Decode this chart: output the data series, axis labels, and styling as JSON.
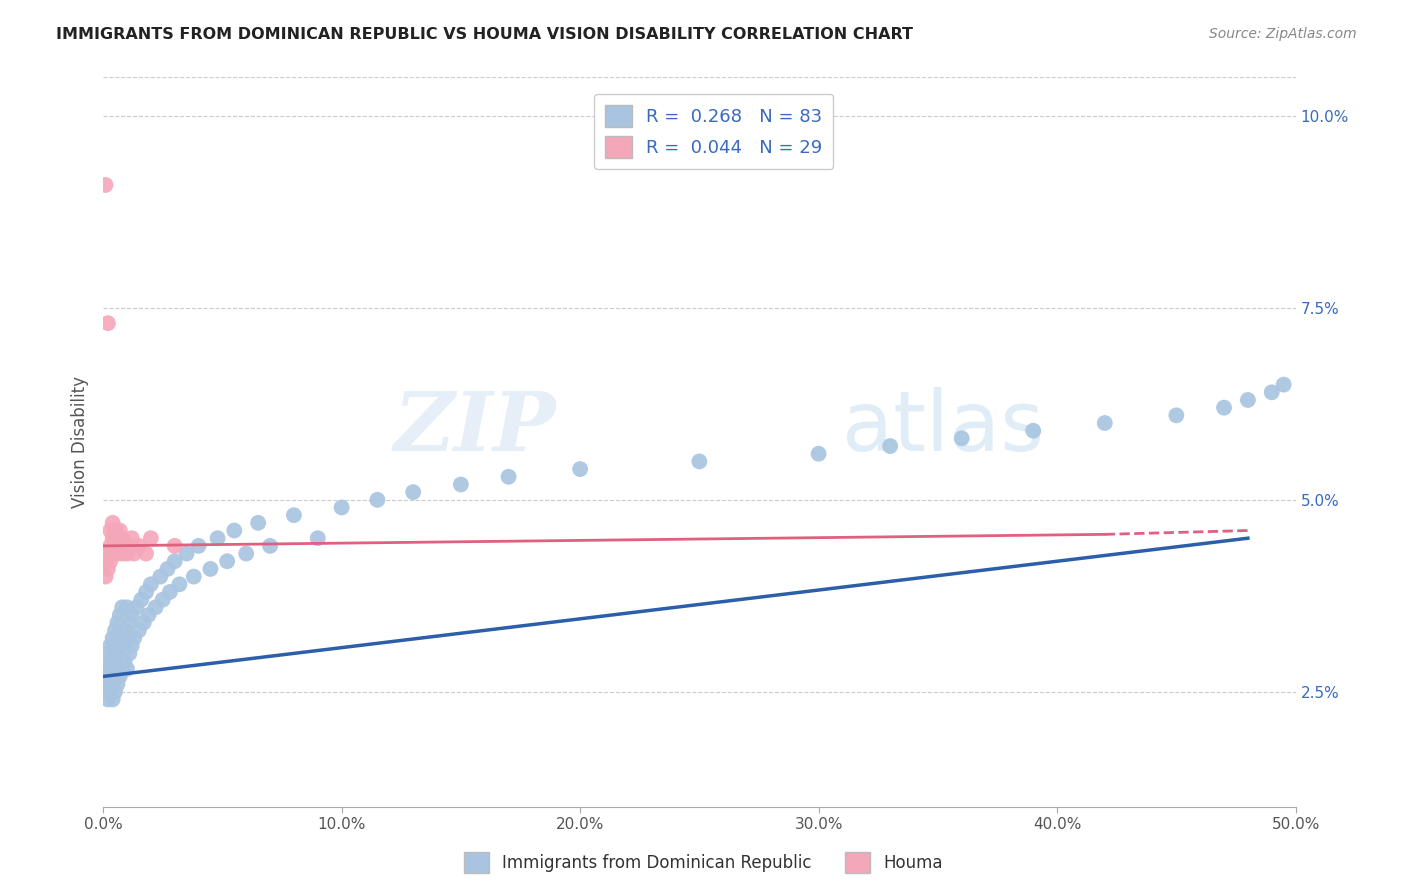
{
  "title": "IMMIGRANTS FROM DOMINICAN REPUBLIC VS HOUMA VISION DISABILITY CORRELATION CHART",
  "source": "Source: ZipAtlas.com",
  "ylabel": "Vision Disability",
  "xlim": [
    0.0,
    0.5
  ],
  "ylim": [
    0.01,
    0.105
  ],
  "x_ticks": [
    0.0,
    0.1,
    0.2,
    0.3,
    0.4,
    0.5
  ],
  "x_tick_labels": [
    "0.0%",
    "10.0%",
    "20.0%",
    "30.0%",
    "40.0%",
    "50.0%"
  ],
  "y_ticks_right": [
    0.025,
    0.05,
    0.075,
    0.1
  ],
  "y_tick_labels_right": [
    "2.5%",
    "5.0%",
    "7.5%",
    "10.0%"
  ],
  "blue_R": 0.268,
  "blue_N": 83,
  "pink_R": 0.044,
  "pink_N": 29,
  "blue_color": "#a8c4e0",
  "pink_color": "#f4a7b9",
  "blue_line_color": "#2b5faa",
  "pink_line_color": "#e06080",
  "watermark_zip": "ZIP",
  "watermark_atlas": "atlas",
  "blue_scatter_x": [
    0.001,
    0.001,
    0.001,
    0.002,
    0.002,
    0.002,
    0.002,
    0.003,
    0.003,
    0.003,
    0.003,
    0.004,
    0.004,
    0.004,
    0.004,
    0.004,
    0.005,
    0.005,
    0.005,
    0.005,
    0.005,
    0.006,
    0.006,
    0.006,
    0.007,
    0.007,
    0.007,
    0.008,
    0.008,
    0.008,
    0.009,
    0.009,
    0.01,
    0.01,
    0.01,
    0.011,
    0.011,
    0.012,
    0.012,
    0.013,
    0.014,
    0.015,
    0.016,
    0.017,
    0.018,
    0.019,
    0.02,
    0.022,
    0.024,
    0.025,
    0.027,
    0.028,
    0.03,
    0.032,
    0.035,
    0.038,
    0.04,
    0.045,
    0.048,
    0.052,
    0.055,
    0.06,
    0.065,
    0.07,
    0.08,
    0.09,
    0.1,
    0.115,
    0.13,
    0.15,
    0.17,
    0.2,
    0.25,
    0.3,
    0.33,
    0.36,
    0.39,
    0.42,
    0.45,
    0.47,
    0.48,
    0.49,
    0.495
  ],
  "blue_scatter_y": [
    0.025,
    0.027,
    0.028,
    0.024,
    0.026,
    0.028,
    0.03,
    0.025,
    0.027,
    0.029,
    0.031,
    0.024,
    0.026,
    0.028,
    0.03,
    0.032,
    0.025,
    0.027,
    0.029,
    0.031,
    0.033,
    0.026,
    0.03,
    0.034,
    0.027,
    0.031,
    0.035,
    0.028,
    0.032,
    0.036,
    0.029,
    0.033,
    0.028,
    0.032,
    0.036,
    0.03,
    0.034,
    0.031,
    0.035,
    0.032,
    0.036,
    0.033,
    0.037,
    0.034,
    0.038,
    0.035,
    0.039,
    0.036,
    0.04,
    0.037,
    0.041,
    0.038,
    0.042,
    0.039,
    0.043,
    0.04,
    0.044,
    0.041,
    0.045,
    0.042,
    0.046,
    0.043,
    0.047,
    0.044,
    0.048,
    0.045,
    0.049,
    0.05,
    0.051,
    0.052,
    0.053,
    0.054,
    0.055,
    0.056,
    0.057,
    0.058,
    0.059,
    0.06,
    0.061,
    0.062,
    0.063,
    0.064,
    0.065
  ],
  "pink_scatter_x": [
    0.001,
    0.001,
    0.002,
    0.002,
    0.003,
    0.003,
    0.003,
    0.004,
    0.004,
    0.004,
    0.005,
    0.005,
    0.006,
    0.006,
    0.007,
    0.007,
    0.008,
    0.008,
    0.009,
    0.01,
    0.011,
    0.012,
    0.013,
    0.015,
    0.018,
    0.02,
    0.03,
    0.001,
    0.002
  ],
  "pink_scatter_y": [
    0.04,
    0.042,
    0.041,
    0.043,
    0.042,
    0.044,
    0.046,
    0.043,
    0.045,
    0.047,
    0.044,
    0.046,
    0.043,
    0.045,
    0.044,
    0.046,
    0.043,
    0.045,
    0.044,
    0.043,
    0.044,
    0.045,
    0.043,
    0.044,
    0.043,
    0.045,
    0.044,
    0.091,
    0.073
  ]
}
